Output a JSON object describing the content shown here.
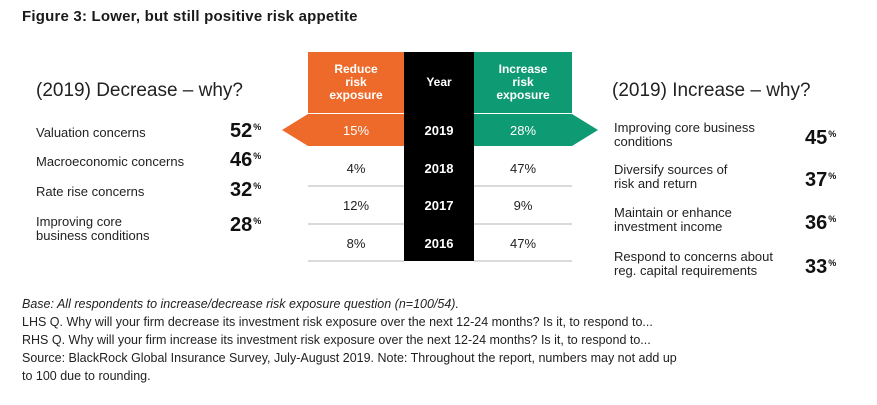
{
  "title": "Figure 3: Lower, but still positive risk appetite",
  "colors": {
    "reduce": "#EE6A2A",
    "increase": "#0E9A72",
    "year": "#000000"
  },
  "left": {
    "heading": "(2019) Decrease – why?",
    "items": [
      {
        "label_lines": [
          "Valuation concerns"
        ],
        "value": "52"
      },
      {
        "label_lines": [
          "Macroeconomic concerns"
        ],
        "value": "46"
      },
      {
        "label_lines": [
          "Rate rise concerns"
        ],
        "value": "32"
      },
      {
        "label_lines": [
          "Improving core",
          "business conditions"
        ],
        "value": "28"
      }
    ]
  },
  "right": {
    "heading": "(2019) Increase – why?",
    "items": [
      {
        "label_lines": [
          "Improving core business",
          "conditions"
        ],
        "value": "45"
      },
      {
        "label_lines": [
          "Diversify sources of",
          "risk and return"
        ],
        "value": "37"
      },
      {
        "label_lines": [
          "Maintain or enhance",
          "investment income"
        ],
        "value": "36"
      },
      {
        "label_lines": [
          "Respond to concerns about",
          "reg. capital requirements"
        ],
        "value": "33"
      }
    ]
  },
  "pct_symbol": "%",
  "table": {
    "headers": {
      "reduce": [
        "Reduce",
        "risk",
        "exposure"
      ],
      "year": "Year",
      "increase": [
        "Increase",
        "risk",
        "exposure"
      ]
    },
    "rows": [
      {
        "year": "2019",
        "reduce": "15%",
        "increase": "28%"
      },
      {
        "year": "2018",
        "reduce": "4%",
        "increase": "47%"
      },
      {
        "year": "2017",
        "reduce": "12%",
        "increase": "9%"
      },
      {
        "year": "2016",
        "reduce": "8%",
        "increase": "47%"
      }
    ]
  },
  "chart_data": {
    "type": "table",
    "title": "Figure 3: Lower, but still positive risk appetite",
    "columns": [
      "Reduce risk exposure",
      "Year",
      "Increase risk exposure"
    ],
    "years": [
      "2019",
      "2018",
      "2017",
      "2016"
    ],
    "series": [
      {
        "name": "Reduce risk exposure",
        "values": [
          15,
          4,
          12,
          8
        ]
      },
      {
        "name": "Increase risk exposure",
        "values": [
          28,
          47,
          9,
          47
        ]
      }
    ],
    "decrease_reasons_2019": {
      "categories": [
        "Valuation concerns",
        "Macroeconomic concerns",
        "Rate rise concerns",
        "Improving core business conditions"
      ],
      "values": [
        52,
        46,
        32,
        28
      ]
    },
    "increase_reasons_2019": {
      "categories": [
        "Improving core business conditions",
        "Diversify sources of risk and return",
        "Maintain or enhance investment income",
        "Respond to concerns about reg. capital requirements"
      ],
      "values": [
        45,
        37,
        36,
        33
      ]
    },
    "unit": "%"
  },
  "footnotes": {
    "base": "Base: All respondents to increase/decrease risk exposure question (n=100/54).",
    "lhs": "LHS Q. Why will your firm decrease its investment risk exposure over the next 12-24 months? Is it, to respond to...",
    "rhs": "RHS Q. Why will your firm increase its investment risk exposure over the next 12-24 months? Is it, to respond to...",
    "source_line1": "Source: BlackRock Global Insurance Survey, July-August 2019. Note: Throughout the report, numbers may not add up",
    "source_line2": "to 100 due to rounding."
  }
}
